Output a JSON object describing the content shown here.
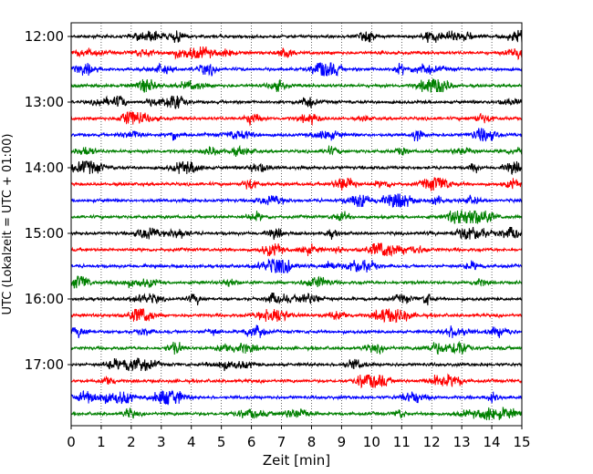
{
  "chart_data": {
    "type": "line",
    "title": "",
    "xlabel": "Zeit  [min]",
    "ylabel": "UTC (Lokalzeit = UTC + 01:00)",
    "xlim": [
      0,
      15
    ],
    "x_ticks": [
      "0",
      "1",
      "2",
      "3",
      "4",
      "5",
      "6",
      "7",
      "8",
      "9",
      "10",
      "11",
      "12",
      "13",
      "14",
      "15"
    ],
    "y_ticks": [
      "12:00",
      "13:00",
      "14:00",
      "15:00",
      "16:00",
      "17:00"
    ],
    "grid": "vertical dotted",
    "trace_interval_minutes": 15,
    "trace_start": "12:00",
    "trace_count": 24,
    "trace_colors": [
      "#000000",
      "#ff0000",
      "#0000ff",
      "#008000"
    ]
  }
}
